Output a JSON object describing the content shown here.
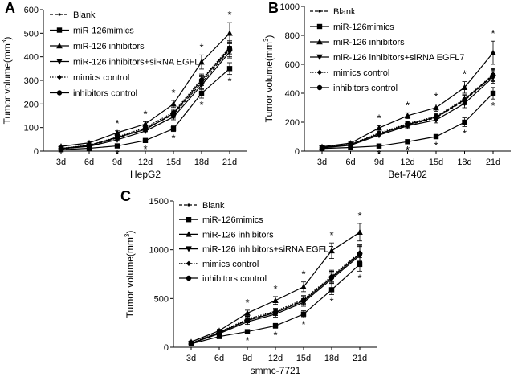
{
  "colors": {
    "ink": "#000000",
    "background": "#ffffff"
  },
  "chart_data": [
    {
      "panel": "A",
      "type": "line",
      "xlabel": "HepG2",
      "ylabel_prefix": "Tumor volume(mm",
      "ylabel_sup": "3",
      "ylabel_suffix": ")",
      "categories": [
        "3d",
        "6d",
        "9d",
        "12d",
        "15d",
        "18d",
        "21d"
      ],
      "ylim": [
        0,
        600
      ],
      "yticks": [
        0,
        100,
        200,
        300,
        400,
        500,
        600
      ],
      "sig_marker": "*",
      "series": [
        {
          "name": "Blank",
          "marker": "dot",
          "line": "dashed",
          "values": [
            8,
            22,
            55,
            95,
            155,
            290,
            430
          ],
          "err": [
            3,
            5,
            8,
            10,
            15,
            25,
            30
          ]
        },
        {
          "name": "miR-126mimics",
          "marker": "square",
          "line": "solid",
          "values": [
            6,
            12,
            22,
            45,
            95,
            245,
            350
          ],
          "err": [
            2,
            3,
            5,
            8,
            12,
            20,
            25
          ],
          "sig": [
            false,
            false,
            true,
            true,
            true,
            true,
            true
          ]
        },
        {
          "name": "miR-126 inhibitors",
          "marker": "triangle-up",
          "line": "solid",
          "values": [
            20,
            35,
            78,
            115,
            200,
            378,
            500
          ],
          "err": [
            5,
            6,
            8,
            10,
            15,
            30,
            45
          ],
          "sig": [
            false,
            false,
            true,
            true,
            true,
            true,
            true
          ]
        },
        {
          "name": "miR-126 inhibitors+siRNA EGFL7",
          "marker": "triangle-down",
          "line": "solid",
          "values": [
            10,
            20,
            48,
            85,
            145,
            280,
            420
          ],
          "err": [
            3,
            4,
            6,
            8,
            12,
            20,
            25
          ]
        },
        {
          "name": "mimics control",
          "marker": "diamond",
          "line": "dotted",
          "values": [
            12,
            25,
            60,
            100,
            165,
            305,
            440
          ],
          "err": [
            3,
            5,
            7,
            10,
            14,
            22,
            28
          ]
        },
        {
          "name": "inhibitors control",
          "marker": "circle",
          "line": "solid",
          "values": [
            11,
            24,
            58,
            92,
            160,
            300,
            435
          ],
          "err": [
            3,
            5,
            7,
            10,
            14,
            22,
            28
          ]
        }
      ]
    },
    {
      "panel": "B",
      "type": "line",
      "xlabel": "Bet-7402",
      "ylabel_prefix": "Tumor volume(mm",
      "ylabel_sup": "3",
      "ylabel_suffix": ")",
      "categories": [
        "3d",
        "6d",
        "9d",
        "12d",
        "15d",
        "18d",
        "21d"
      ],
      "ylim": [
        0,
        1000
      ],
      "yticks": [
        0,
        200,
        400,
        600,
        800,
        1000
      ],
      "sig_marker": "*",
      "series": [
        {
          "name": "Blank",
          "marker": "dot",
          "line": "dashed",
          "values": [
            25,
            45,
            120,
            180,
            230,
            350,
            520
          ],
          "err": [
            5,
            8,
            12,
            15,
            20,
            30,
            40
          ]
        },
        {
          "name": "miR-126mimics",
          "marker": "square",
          "line": "solid",
          "values": [
            18,
            25,
            35,
            65,
            100,
            200,
            400
          ],
          "err": [
            4,
            5,
            6,
            10,
            15,
            30,
            40
          ],
          "sig": [
            false,
            false,
            true,
            true,
            true,
            true,
            true
          ]
        },
        {
          "name": "miR-126 inhibitors",
          "marker": "triangle-up",
          "line": "solid",
          "values": [
            30,
            55,
            160,
            245,
            300,
            440,
            680
          ],
          "err": [
            5,
            8,
            15,
            20,
            25,
            40,
            80
          ],
          "sig": [
            false,
            false,
            true,
            true,
            true,
            true,
            true
          ]
        },
        {
          "name": "miR-126 inhibitors+siRNA EGFL7",
          "marker": "triangle-down",
          "line": "solid",
          "values": [
            22,
            40,
            110,
            175,
            215,
            330,
            510
          ],
          "err": [
            5,
            8,
            12,
            15,
            20,
            30,
            40
          ]
        },
        {
          "name": "mimics control",
          "marker": "diamond",
          "line": "dotted",
          "values": [
            26,
            48,
            125,
            190,
            240,
            360,
            530
          ],
          "err": [
            5,
            8,
            12,
            15,
            20,
            30,
            40
          ]
        },
        {
          "name": "inhibitors control",
          "marker": "circle",
          "line": "solid",
          "values": [
            24,
            46,
            118,
            185,
            235,
            355,
            525
          ],
          "err": [
            5,
            8,
            12,
            15,
            20,
            30,
            40
          ]
        }
      ]
    },
    {
      "panel": "C",
      "type": "line",
      "xlabel": "smmc-7721",
      "ylabel_prefix": "Tumor volume(mm",
      "ylabel_sup": "3",
      "ylabel_suffix": ")",
      "categories": [
        "3d",
        "6d",
        "9d",
        "12d",
        "15d",
        "18d",
        "21d"
      ],
      "ylim": [
        0,
        1500
      ],
      "yticks": [
        0,
        500,
        1000,
        1500
      ],
      "sig_marker": "*",
      "series": [
        {
          "name": "Blank",
          "marker": "dot",
          "line": "dashed",
          "values": [
            40,
            150,
            280,
            360,
            480,
            720,
            960
          ],
          "err": [
            10,
            15,
            25,
            30,
            40,
            60,
            80
          ]
        },
        {
          "name": "miR-126mimics",
          "marker": "square",
          "line": "solid",
          "values": [
            35,
            110,
            160,
            220,
            340,
            590,
            850
          ],
          "err": [
            8,
            12,
            20,
            25,
            35,
            50,
            70
          ],
          "sig": [
            false,
            false,
            true,
            true,
            true,
            true,
            true
          ]
        },
        {
          "name": "miR-126 inhibitors",
          "marker": "triangle-up",
          "line": "solid",
          "values": [
            55,
            170,
            350,
            480,
            620,
            990,
            1180
          ],
          "err": [
            10,
            15,
            30,
            40,
            50,
            80,
            90
          ],
          "sig": [
            false,
            false,
            true,
            true,
            true,
            true,
            true
          ]
        },
        {
          "name": "miR-126 inhibitors+siRNA EGFL7",
          "marker": "triangle-down",
          "line": "solid",
          "values": [
            38,
            140,
            260,
            340,
            460,
            700,
            940
          ],
          "err": [
            8,
            15,
            25,
            30,
            40,
            60,
            80
          ]
        },
        {
          "name": "mimics control",
          "marker": "diamond",
          "line": "dotted",
          "values": [
            42,
            155,
            290,
            370,
            490,
            730,
            970
          ],
          "err": [
            10,
            15,
            25,
            30,
            40,
            60,
            80
          ]
        },
        {
          "name": "inhibitors control",
          "marker": "circle",
          "line": "solid",
          "values": [
            40,
            148,
            275,
            355,
            475,
            715,
            955
          ],
          "err": [
            10,
            15,
            25,
            30,
            40,
            60,
            80
          ]
        }
      ]
    }
  ]
}
